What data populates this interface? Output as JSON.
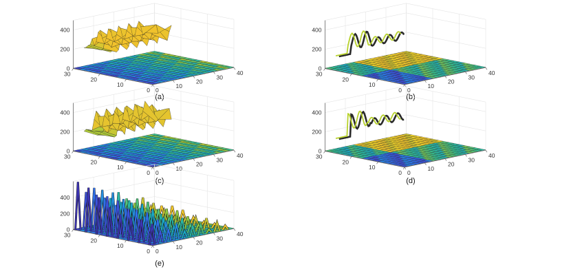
{
  "chart_data": [
    {
      "type": "surface3d",
      "caption": "(a)",
      "z_ticks": [
        "0",
        "200",
        "400"
      ],
      "x_ticks": [
        "0",
        "10",
        "20",
        "30",
        "40"
      ],
      "y_ticks": [
        "0",
        "10",
        "20",
        "30"
      ],
      "xlim": [
        0,
        40
      ],
      "ylim": [
        0,
        30
      ],
      "zlim": [
        0,
        500
      ],
      "surface": "flat-low",
      "feature": {
        "kind": "wide-ribbon",
        "y_range": [
          19,
          29
        ],
        "x_range": [
          4,
          34
        ],
        "z_base": 200,
        "z_amplitude": 160,
        "z_max": 420
      }
    },
    {
      "type": "surface3d",
      "caption": "(b)",
      "z_ticks": [
        "0",
        "200",
        "400"
      ],
      "x_ticks": [
        "0",
        "10",
        "20",
        "30",
        "40"
      ],
      "y_ticks": [
        "0",
        "10",
        "20",
        "30"
      ],
      "xlim": [
        0,
        40
      ],
      "ylim": [
        0,
        30
      ],
      "zlim": [
        0,
        500
      ],
      "surface": "flat-bright-band",
      "feature": {
        "kind": "thin-curve",
        "y": 29,
        "x_range": [
          4,
          36
        ],
        "z_base": 150,
        "z_amplitude": 140,
        "z_max": 420
      }
    },
    {
      "type": "surface3d",
      "caption": "(c)",
      "z_ticks": [
        "0",
        "200",
        "400"
      ],
      "x_ticks": [
        "0",
        "10",
        "20",
        "30",
        "40"
      ],
      "y_ticks": [
        "0",
        "10",
        "20",
        "30"
      ],
      "xlim": [
        0,
        40
      ],
      "ylim": [
        0,
        30
      ],
      "zlim": [
        0,
        500
      ],
      "surface": "flat-low",
      "feature": {
        "kind": "wide-ribbon",
        "y_range": [
          19,
          29
        ],
        "x_range": [
          4,
          34
        ],
        "z_base": 180,
        "z_amplitude": 200,
        "z_max": 450
      }
    },
    {
      "type": "surface3d",
      "caption": "(d)",
      "z_ticks": [
        "0",
        "200",
        "400"
      ],
      "x_ticks": [
        "0",
        "10",
        "20",
        "30",
        "40"
      ],
      "y_ticks": [
        "0",
        "10",
        "20",
        "30"
      ],
      "xlim": [
        0,
        40
      ],
      "ylim": [
        0,
        30
      ],
      "zlim": [
        0,
        500
      ],
      "surface": "flat-bright-band",
      "feature": {
        "kind": "thin-curve",
        "y": 29,
        "x_range": [
          4,
          36
        ],
        "z_base": 170,
        "z_amplitude": 150,
        "z_max": 440
      }
    },
    {
      "type": "surface3d",
      "caption": "(e)",
      "z_ticks": [
        "0",
        "200",
        "400"
      ],
      "x_ticks": [
        "0",
        "10",
        "20",
        "30",
        "40"
      ],
      "y_ticks": [
        "0",
        "10",
        "20",
        "30"
      ],
      "xlim": [
        0,
        40
      ],
      "ylim": [
        0,
        30
      ],
      "zlim": [
        0,
        600
      ],
      "surface": "flat-low",
      "feature": {
        "kind": "spike-rows",
        "row_ys": [
          29,
          25,
          21,
          17,
          13,
          9,
          5,
          1
        ],
        "spike_spacing": 4,
        "z_max": 560
      }
    }
  ],
  "colors": {
    "colormap": [
      "#3b1d8f",
      "#3f4bd8",
      "#2c7df0",
      "#1aa7c9",
      "#33c196",
      "#9ccc3c",
      "#f2c22c",
      "#f9e629"
    ],
    "background": "#ffffff",
    "axis": "#555555",
    "grid": "#e4e4e4"
  }
}
